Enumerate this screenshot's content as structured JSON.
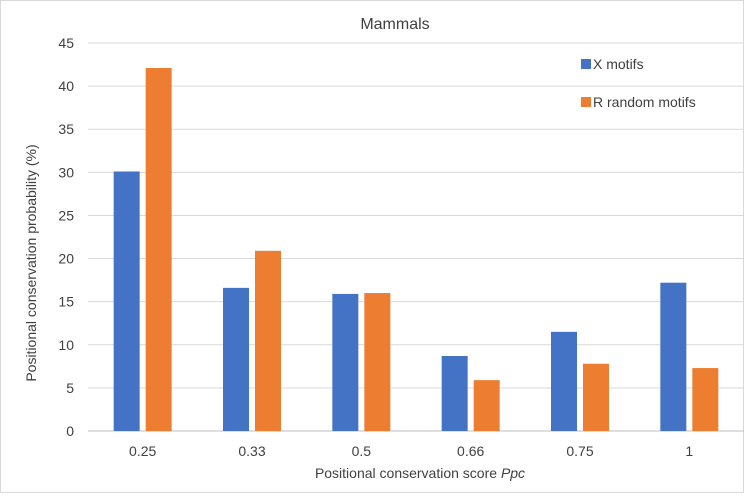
{
  "chart_data": {
    "type": "bar",
    "title": "Mammals",
    "xlabel": "Positional conservation score",
    "xlabel_italic": "Ppc",
    "ylabel": "Positional conservation probability (%)",
    "categories": [
      "0.25",
      "0.33",
      "0.5",
      "0.66",
      "0.75",
      "1"
    ],
    "ylim": [
      0,
      45
    ],
    "yticks": [
      0,
      5,
      10,
      15,
      20,
      25,
      30,
      35,
      40,
      45
    ],
    "grid": true,
    "legend_position": "top-right",
    "series": [
      {
        "name": "X motifs",
        "color": "#4472c4",
        "values": [
          30.1,
          16.6,
          15.9,
          8.7,
          11.5,
          17.2
        ]
      },
      {
        "name": "R random motifs",
        "color": "#ed7d31",
        "values": [
          42.1,
          20.9,
          16.0,
          5.9,
          7.8,
          7.3
        ]
      }
    ]
  }
}
